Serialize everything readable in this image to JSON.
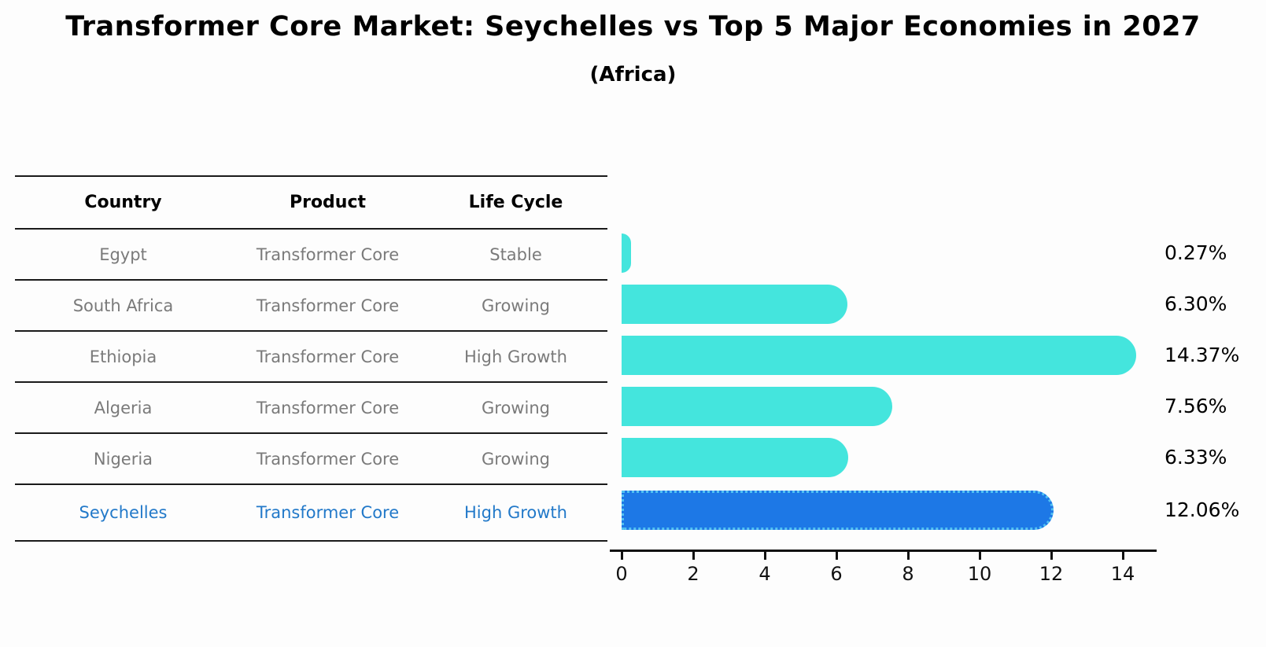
{
  "title": "Transformer Core Market: Seychelles vs Top 5 Major Economies in 2027",
  "subtitle": "(Africa)",
  "table": {
    "headers": [
      "Country",
      "Product",
      "Life Cycle"
    ],
    "rows": [
      {
        "country": "Egypt",
        "product": "Transformer Core",
        "life_cycle": "Stable",
        "highlight": false
      },
      {
        "country": "South Africa",
        "product": "Transformer Core",
        "life_cycle": "Growing",
        "highlight": false
      },
      {
        "country": "Ethiopia",
        "product": "Transformer Core",
        "life_cycle": "High Growth",
        "highlight": false
      },
      {
        "country": "Algeria",
        "product": "Transformer Core",
        "life_cycle": "Growing",
        "highlight": false
      },
      {
        "country": "Nigeria",
        "product": "Transformer Core",
        "life_cycle": "Growing",
        "highlight": true
      }
    ],
    "highlight_row": {
      "country": "Seychelles",
      "product": "Transformer Core",
      "life_cycle": "High Growth"
    }
  },
  "chart_data": {
    "type": "bar",
    "orientation": "horizontal",
    "categories": [
      "Egypt",
      "South Africa",
      "Ethiopia",
      "Algeria",
      "Nigeria",
      "Seychelles"
    ],
    "values": [
      0.27,
      6.3,
      14.37,
      7.56,
      6.33,
      12.06
    ],
    "value_labels": [
      "0.27%",
      "6.30%",
      "14.37%",
      "7.56%",
      "6.33%",
      "12.06%"
    ],
    "x_ticks": [
      0,
      2,
      4,
      6,
      8,
      10,
      12,
      14
    ],
    "x_tick_labels": [
      "0",
      "2",
      "4",
      "6",
      "8",
      "10",
      "12",
      "14"
    ],
    "xlim": [
      0,
      14.95
    ],
    "grid": false,
    "legend": false,
    "highlight_index": 5,
    "title": "Transformer Core Market: Seychelles vs Top 5 Major Economies in 2027",
    "subtitle": "(Africa)"
  },
  "colors": {
    "bar": "#44e5dd",
    "highlight_bar": "#1d78e6",
    "highlight_border": "#52c2f2",
    "highlight_text": "#2279c9",
    "table_text": "#7a7a7a",
    "axis": "#111111",
    "background": "#fdfdfd"
  }
}
